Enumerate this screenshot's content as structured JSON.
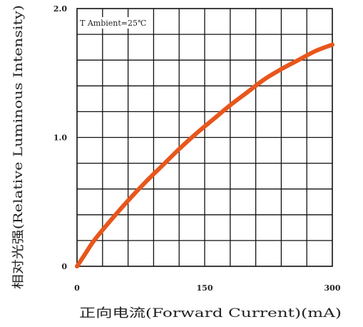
{
  "chart_data": {
    "type": "line",
    "xlabel": "正向电流(Forward Current)(mA)",
    "ylabel": "相对光强(Relative Luminous Intensity)",
    "annotation": "T Ambient=25℃",
    "x_ticks": [
      {
        "value": 0,
        "label": "0"
      },
      {
        "value": 150,
        "label": "150"
      },
      {
        "value": 300,
        "label": "300"
      }
    ],
    "y_ticks": [
      {
        "value": 0,
        "label": "0"
      },
      {
        "value": 1.0,
        "label": "1.0"
      },
      {
        "value": 2.0,
        "label": "2.0"
      }
    ],
    "xlim": [
      0,
      300
    ],
    "ylim": [
      0,
      2.0
    ],
    "grid": true,
    "grid_x_step": 30,
    "grid_y_step": 0.2,
    "series": [
      {
        "name": "",
        "color": "#e8561c",
        "x": [
          0,
          10,
          20,
          40,
          60,
          80,
          100,
          120,
          140,
          160,
          180,
          200,
          220,
          240,
          260,
          280,
          300
        ],
        "y": [
          0,
          0.1,
          0.2,
          0.36,
          0.51,
          0.65,
          0.78,
          0.91,
          1.03,
          1.14,
          1.25,
          1.35,
          1.45,
          1.53,
          1.6,
          1.67,
          1.72
        ]
      }
    ]
  }
}
